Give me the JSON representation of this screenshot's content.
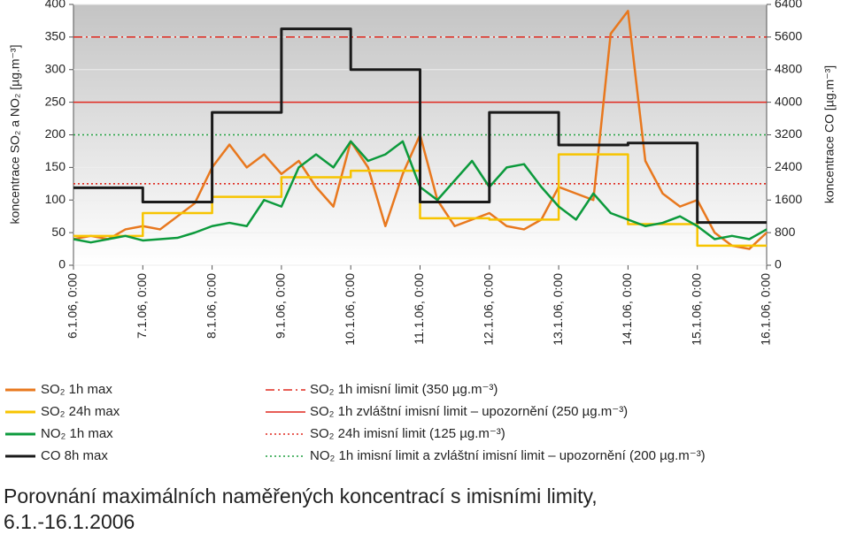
{
  "chart_data": {
    "type": "line",
    "title": [
      "Porovnání maximálních naměřených koncentrací s imisními limity,",
      "6.1.-16.1.2006"
    ],
    "ylabel": "koncentrace SO₂ a NO₂ [µg.m⁻³]",
    "y2label": "koncentrace CO [µg.m⁻³]",
    "x": [
      0,
      0.25,
      0.5,
      0.75,
      1,
      1.25,
      1.5,
      1.75,
      2,
      2.25,
      2.5,
      2.75,
      3,
      3.25,
      3.5,
      3.75,
      4,
      4.25,
      4.5,
      4.75,
      5,
      5.25,
      5.5,
      5.75,
      6,
      6.25,
      6.5,
      6.75,
      7,
      7.25,
      7.5,
      7.75,
      8,
      8.25,
      8.5,
      8.75,
      9,
      9.25,
      9.5,
      9.75,
      10
    ],
    "xlim": [
      0,
      10
    ],
    "xticks": [
      {
        "value": 0,
        "label": "6.1.06, 0:00"
      },
      {
        "value": 1,
        "label": "7.1.06, 0:00"
      },
      {
        "value": 2,
        "label": "8.1.06, 0:00"
      },
      {
        "value": 3,
        "label": "9.1.06, 0:00"
      },
      {
        "value": 4,
        "label": "10.1.06, 0:00"
      },
      {
        "value": 5,
        "label": "11.1.06, 0:00"
      },
      {
        "value": 6,
        "label": "12.1.06, 0:00"
      },
      {
        "value": 7,
        "label": "13.1.06, 0:00"
      },
      {
        "value": 8,
        "label": "14.1.06, 0:00"
      },
      {
        "value": 9,
        "label": "15.1.06, 0:00"
      },
      {
        "value": 10,
        "label": "16.1.06, 0:00"
      }
    ],
    "ylim": [
      0,
      400
    ],
    "yticks": [
      0,
      50,
      100,
      150,
      200,
      250,
      300,
      350,
      400
    ],
    "y2lim": [
      0,
      6400
    ],
    "y2ticks": [
      0,
      800,
      1600,
      2400,
      3200,
      4000,
      4800,
      5600,
      6400
    ],
    "grid": true,
    "series": [
      {
        "name": "SO₂ 1h max",
        "color": "#e8781e",
        "values": [
          40,
          45,
          40,
          55,
          60,
          55,
          75,
          95,
          150,
          185,
          150,
          170,
          140,
          160,
          120,
          90,
          190,
          150,
          60,
          140,
          200,
          100,
          60,
          70,
          80,
          60,
          55,
          70,
          120,
          110,
          100,
          355,
          390,
          160,
          110,
          90,
          100,
          50,
          30,
          25,
          50
        ]
      },
      {
        "name": "SO₂ 24h max",
        "color": "#f7c400",
        "step": true,
        "values": [
          45,
          45,
          45,
          45,
          80,
          80,
          80,
          80,
          105,
          105,
          105,
          105,
          135,
          135,
          135,
          135,
          145,
          145,
          145,
          145,
          72,
          72,
          72,
          72,
          70,
          70,
          70,
          70,
          170,
          170,
          170,
          170,
          63,
          63,
          63,
          63,
          30,
          30,
          30,
          30,
          30
        ]
      },
      {
        "name": "NO₂ 1h max",
        "color": "#0c9a3c",
        "values": [
          40,
          35,
          40,
          45,
          38,
          40,
          42,
          50,
          60,
          65,
          60,
          100,
          90,
          150,
          170,
          150,
          190,
          160,
          170,
          190,
          120,
          100,
          130,
          160,
          120,
          150,
          155,
          120,
          90,
          70,
          110,
          80,
          70,
          60,
          65,
          75,
          60,
          40,
          45,
          40,
          55
        ]
      },
      {
        "name": "CO 8h max",
        "color": "#1a1a1a",
        "axis": "y2",
        "step": true,
        "values": [
          1900,
          1900,
          1900,
          1900,
          1550,
          1550,
          1550,
          1550,
          3750,
          3750,
          3750,
          3750,
          5800,
          5800,
          5800,
          5800,
          4800,
          4800,
          4800,
          4800,
          1550,
          1550,
          1550,
          1550,
          3750,
          3750,
          3750,
          3750,
          2950,
          2950,
          2950,
          2950,
          3000,
          3000,
          3000,
          3000,
          1050,
          1050,
          1050,
          1050,
          1050
        ]
      }
    ],
    "limits": [
      {
        "name": "SO₂ 1h imisní limit (350 µg.m⁻³)",
        "value": 350,
        "color": "#e0281e",
        "style": "dashdot"
      },
      {
        "name": "SO₂ 1h zvláštní imisní limit – upozornění (250 µg.m⁻³)",
        "value": 250,
        "color": "#e0281e",
        "style": "solid"
      },
      {
        "name": "SO₂ 24h imisní limit (125 µg.m⁻³)",
        "value": 125,
        "color": "#e0281e",
        "style": "dotted"
      },
      {
        "name": "NO₂ 1h imisní limit a zvláštní imisní limit – upozornění (200 µg.m⁻³)",
        "value": 200,
        "color": "#20a040",
        "style": "dotted"
      }
    ]
  }
}
